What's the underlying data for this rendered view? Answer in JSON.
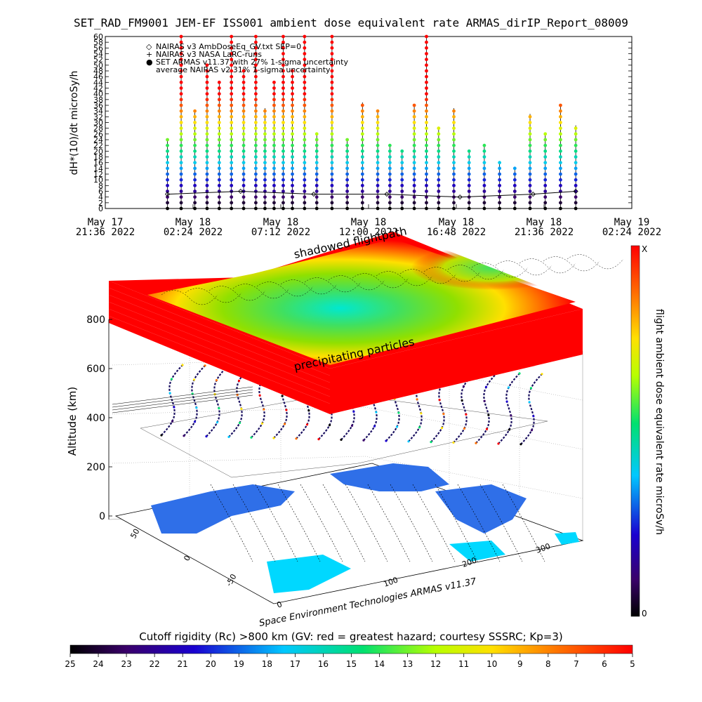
{
  "chart_data": [
    {
      "type": "line",
      "title": "SET_RAD_FM9001  JEM-EF ISS001 ambient dose equivalent rate ARMAS_dirIP_Report_08009",
      "ylabel": "dH*(10)/dt microSy/h",
      "ylim": [
        0,
        60
      ],
      "y_ticks": [
        0,
        2,
        4,
        6,
        8,
        10,
        12,
        14,
        16,
        18,
        20,
        22,
        24,
        26,
        28,
        30,
        32,
        34,
        36,
        38,
        40,
        42,
        44,
        46,
        48,
        50,
        52,
        54,
        56,
        58,
        60
      ],
      "x_ticks": [
        {
          "line1": "May 17",
          "line2": "21:36  2022"
        },
        {
          "line1": "May 18",
          "line2": "02:24  2022"
        },
        {
          "line1": "May 18",
          "line2": "07:12  2022"
        },
        {
          "line1": "May 18",
          "line2": "12:00  2022"
        },
        {
          "line1": "May 18",
          "line2": "16:48  2022"
        },
        {
          "line1": "May 18",
          "line2": "21:36  2022"
        },
        {
          "line1": "May 19",
          "line2": "02:24  2022"
        }
      ],
      "x_range": [
        "2022-05-17 21:36",
        "2022-05-19 02:24"
      ],
      "legend": [
        {
          "symbol": "◇",
          "text": "NAIRAS v3 AmbDoseEq_GV.txt SEP=0"
        },
        {
          "symbol": "+",
          "text": "NAIRAS v3 NASA LaRC-runs"
        },
        {
          "symbol": "●",
          "text": "SET ARMAS v11.37 with 27% 1-sigma uncertainty"
        },
        {
          "symbol": "",
          "text": "average NAIRAS v2 31% 1-sigma uncertainty"
        }
      ],
      "legend_position": "top-left",
      "series": [
        {
          "name": "SET ARMAS v11.37",
          "x": [
            "2022-05-18 01:00",
            "2022-05-18 01:45",
            "2022-05-18 02:30",
            "2022-05-18 03:10",
            "2022-05-18 03:50",
            "2022-05-18 04:30",
            "2022-05-18 05:10",
            "2022-05-18 05:50",
            "2022-05-18 06:20",
            "2022-05-18 06:50",
            "2022-05-18 07:20",
            "2022-05-18 07:50",
            "2022-05-18 08:30",
            "2022-05-18 09:10",
            "2022-05-18 10:00",
            "2022-05-18 10:50",
            "2022-05-18 11:40",
            "2022-05-18 12:30",
            "2022-05-18 13:10",
            "2022-05-18 13:50",
            "2022-05-18 14:30",
            "2022-05-18 15:10",
            "2022-05-18 15:50",
            "2022-05-18 16:40",
            "2022-05-18 17:30",
            "2022-05-18 18:20",
            "2022-05-18 19:10",
            "2022-05-18 20:00",
            "2022-05-18 20:50",
            "2022-05-18 21:40",
            "2022-05-18 22:30",
            "2022-05-18 23:20"
          ],
          "values": [
            24,
            60,
            34,
            50,
            44,
            60,
            48,
            60,
            35,
            44,
            60,
            48,
            60,
            26,
            60,
            24,
            37,
            34,
            22,
            20,
            36,
            60,
            28,
            35,
            20,
            22,
            16,
            14,
            33,
            26,
            36,
            29
          ]
        },
        {
          "name": "NAIRAS v3 AmbDoseEq_GV.txt SEP=0",
          "x": [
            "2022-05-18 01:00",
            "2022-05-18 05:00",
            "2022-05-18 09:00",
            "2022-05-18 13:00",
            "2022-05-18 17:00",
            "2022-05-18 21:00",
            "2022-05-18 23:20"
          ],
          "values": [
            5,
            6,
            5,
            5,
            4,
            5,
            6
          ]
        }
      ]
    },
    {
      "type": "scatter",
      "zlabel": "Altitude (km)",
      "z_ticks": [
        0,
        200,
        400,
        600,
        800
      ],
      "lat_ticks": [
        50,
        0,
        -50
      ],
      "lon_ticks": [
        0,
        100,
        200,
        300
      ],
      "annotations": [
        "shadowed flightpath",
        "precipitating particles",
        "Space Environment Technologies ARMAS v11.37"
      ],
      "colorbar": {
        "label": "flight ambient dose equivalent rate microSv/h",
        "top_label": "X",
        "bottom_label": "0"
      },
      "rigidity_bar": {
        "title": "Cutoff rigidity (Rc) >800 km (GV: red = greatest hazard; courtesy SSSRC; Kp=3)",
        "ticks": [
          25,
          24,
          23,
          22,
          21,
          20,
          19,
          18,
          17,
          16,
          15,
          14,
          13,
          12,
          11,
          10,
          9,
          8,
          7,
          6,
          5
        ]
      }
    }
  ]
}
